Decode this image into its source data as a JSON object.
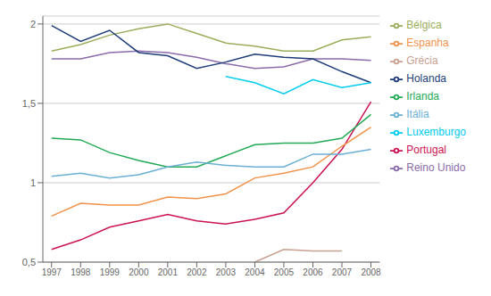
{
  "chart_data": {
    "type": "line",
    "x": [
      1997,
      1998,
      1999,
      2000,
      2001,
      2002,
      2003,
      2004,
      2005,
      2006,
      2007,
      2008
    ],
    "series": [
      {
        "name": "Bélgica",
        "color": "#9aad5a",
        "values": [
          1.83,
          1.87,
          1.93,
          1.97,
          2.0,
          1.94,
          1.88,
          1.86,
          1.83,
          1.83,
          1.9,
          1.92
        ]
      },
      {
        "name": "Reino Unido",
        "color": "#8b6baa",
        "values": [
          1.78,
          1.78,
          1.82,
          1.83,
          1.82,
          1.79,
          1.75,
          1.72,
          1.73,
          1.78,
          1.78,
          1.77
        ]
      },
      {
        "name": "Holanda",
        "color": "#1e3c78",
        "values": [
          1.99,
          1.89,
          1.96,
          1.82,
          1.8,
          1.72,
          1.76,
          1.81,
          1.79,
          1.78,
          1.7,
          1.63
        ]
      },
      {
        "name": "Luxemburgo",
        "color": "#00ccee",
        "values": [
          null,
          null,
          null,
          null,
          null,
          null,
          1.67,
          1.63,
          1.56,
          1.65,
          1.6,
          1.63
        ]
      },
      {
        "name": "Portugal",
        "color": "#cc1155",
        "values": [
          0.58,
          0.64,
          0.72,
          0.76,
          0.8,
          0.76,
          0.74,
          0.77,
          0.81,
          1.0,
          1.21,
          1.51
        ]
      },
      {
        "name": "Irlanda",
        "color": "#22aa55",
        "values": [
          1.28,
          1.27,
          1.19,
          1.14,
          1.1,
          1.1,
          1.17,
          1.24,
          1.25,
          1.25,
          1.28,
          1.43
        ]
      },
      {
        "name": "Espanha",
        "color": "#f0924a",
        "values": [
          0.79,
          0.87,
          0.86,
          0.86,
          0.91,
          0.9,
          0.93,
          1.03,
          1.06,
          1.1,
          1.23,
          1.35
        ]
      },
      {
        "name": "Itália",
        "color": "#6aafd4",
        "values": [
          1.04,
          1.06,
          1.03,
          1.05,
          1.1,
          1.13,
          1.11,
          1.1,
          1.1,
          1.18,
          1.18,
          1.21
        ]
      },
      {
        "name": "Grécia",
        "color": "#c8a090",
        "values": [
          null,
          null,
          null,
          null,
          null,
          null,
          null,
          0.5,
          0.58,
          0.57,
          0.57,
          null
        ]
      }
    ],
    "xlim": [
      1996.7,
      2008.3
    ],
    "xticks": [
      1997,
      1998,
      1999,
      2000,
      2001,
      2002,
      2003,
      2004,
      2005,
      2006,
      2007,
      2008
    ],
    "ylim": [
      0.5,
      2.05
    ],
    "yticks": [
      {
        "value": 0.5,
        "label": "0,5"
      },
      1,
      {
        "value": 1.5,
        "label": "1,5"
      },
      2
    ],
    "grid": "y",
    "legend": "right"
  }
}
